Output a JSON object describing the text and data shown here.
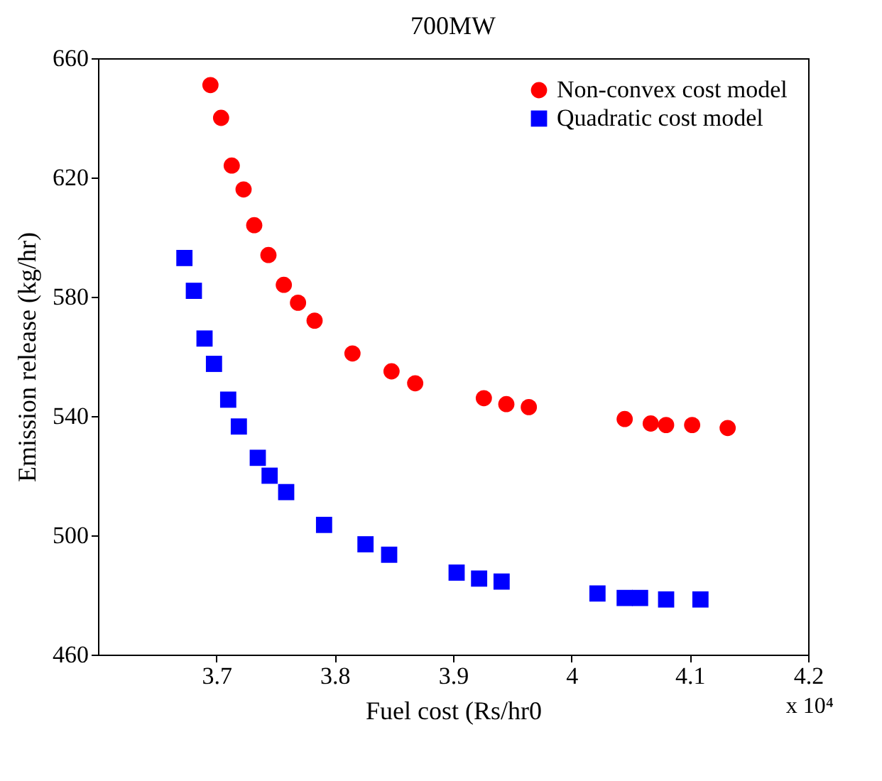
{
  "chart_data": {
    "type": "scatter",
    "title": "700MW",
    "xlabel": "Fuel cost (Rs/hr0",
    "ylabel": "Emission release (kg/hr)",
    "annotations": [
      "x 10⁴"
    ],
    "xlim": [
      3.6,
      4.2
    ],
    "xticks": [
      3.7,
      3.8,
      3.9,
      4,
      4.1,
      4.2
    ],
    "ylim": [
      460,
      660
    ],
    "yticks": [
      460,
      500,
      540,
      580,
      620,
      660
    ],
    "grid": false,
    "legend": "top right",
    "series": [
      {
        "name": "Non-convex cost model",
        "color": "#ff0000",
        "marker": "circle",
        "x": [
          3.695,
          3.704,
          3.713,
          3.723,
          3.732,
          3.744,
          3.757,
          3.769,
          3.783,
          3.815,
          3.848,
          3.868,
          3.926,
          3.945,
          3.964,
          4.045,
          4.067,
          4.08,
          4.102,
          4.132
        ],
        "values": [
          651,
          640,
          624,
          616,
          604,
          594,
          584,
          578,
          572,
          561,
          555,
          551,
          546,
          544,
          543,
          539,
          537.5,
          537,
          537,
          536
        ]
      },
      {
        "name": "Quadratic cost model",
        "color": "#0000ff",
        "marker": "square",
        "x": [
          3.673,
          3.681,
          3.69,
          3.698,
          3.71,
          3.719,
          3.735,
          3.745,
          3.759,
          3.791,
          3.826,
          3.846,
          3.903,
          3.922,
          3.941,
          4.022,
          4.045,
          4.058,
          4.08,
          4.109
        ],
        "values": [
          593,
          582,
          566,
          557.5,
          545.5,
          536.5,
          526,
          520,
          514.5,
          503.5,
          497,
          493.5,
          487.5,
          485.5,
          484.5,
          480.5,
          479,
          479,
          478.5,
          478.5
        ]
      }
    ]
  }
}
